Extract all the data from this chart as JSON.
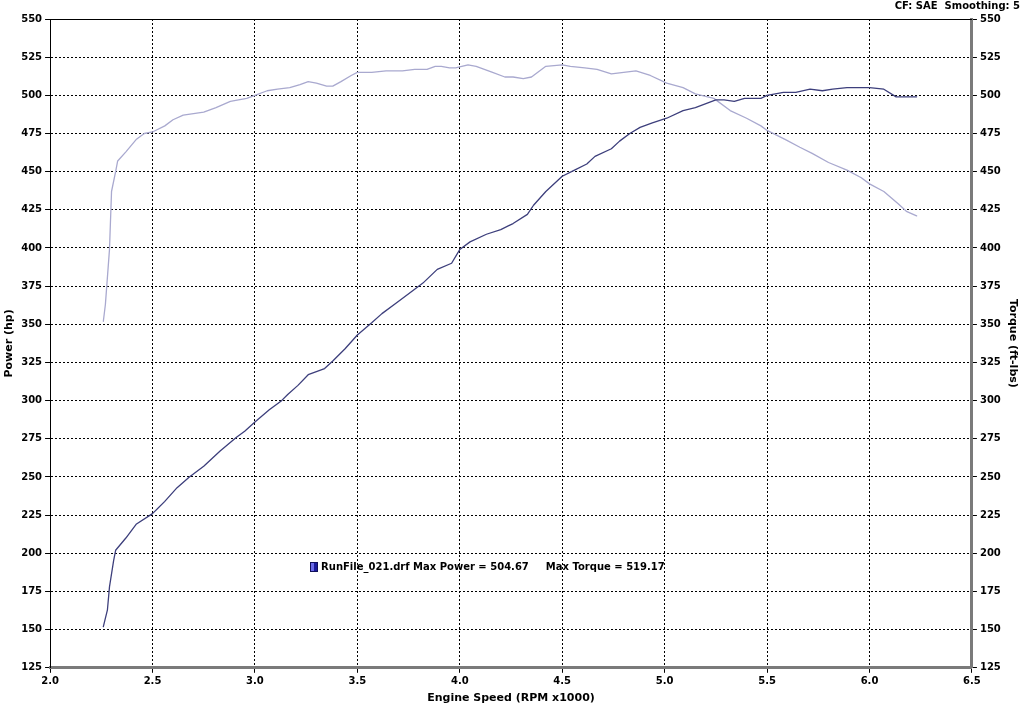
{
  "chart_data": {
    "type": "line",
    "xlabel": "Engine Speed (RPM x1000)",
    "ylabel": "Power (hp)",
    "y2label": "Torque (ft-lbs)",
    "annotations": [
      "CF: SAE  Smoothing: 5",
      "RunFile_021.drf Max Power = 504.67",
      "Max Torque = 519.17"
    ],
    "xlim": [
      2.0,
      6.5
    ],
    "xticks": [
      {
        "value": 2,
        "label": "2.0"
      },
      2.5,
      {
        "value": 3,
        "label": "3.0"
      },
      3.5,
      {
        "value": 4,
        "label": "4.0"
      },
      4.5,
      {
        "value": 5,
        "label": "5.0"
      },
      5.5,
      {
        "value": 6,
        "label": "6.0"
      },
      6.5
    ],
    "ylim": [
      125,
      550
    ],
    "yticks": [
      125,
      150,
      175,
      200,
      225,
      250,
      275,
      300,
      325,
      350,
      375,
      400,
      425,
      450,
      475,
      500,
      525,
      550
    ],
    "y2lim": [
      125,
      550
    ],
    "y2ticks": [
      125,
      150,
      175,
      200,
      225,
      250,
      275,
      300,
      325,
      350,
      375,
      400,
      425,
      450,
      475,
      500,
      525,
      550
    ],
    "grid": true,
    "marker": "none",
    "line_style": "solid",
    "series": [
      {
        "color": "#3d3f7c",
        "x": [
          2.26,
          2.28,
          2.29,
          2.31,
          2.32,
          2.37,
          2.42,
          2.5,
          2.56,
          2.62,
          2.68,
          2.75,
          2.83,
          2.91,
          2.95,
          3.0,
          3.07,
          3.13,
          3.16,
          3.21,
          3.26,
          3.34,
          3.38,
          3.44,
          3.5,
          3.57,
          3.62,
          3.69,
          3.77,
          3.82,
          3.89,
          3.96,
          4.0,
          4.05,
          4.13,
          4.2,
          4.26,
          4.33,
          4.36,
          4.42,
          4.5,
          4.56,
          4.62,
          4.66,
          4.74,
          4.78,
          4.83,
          4.88,
          4.94,
          5.01,
          5.09,
          5.15,
          5.25,
          5.29,
          5.34,
          5.39,
          5.47,
          5.5,
          5.58,
          5.64,
          5.71,
          5.77,
          5.82,
          5.89,
          5.94,
          6.0,
          6.07,
          6.13,
          6.18,
          6.23
        ],
        "values": [
          152,
          163,
          178,
          195,
          202,
          210,
          219,
          226,
          234,
          243,
          250,
          257,
          267,
          276,
          280,
          286,
          294,
          300,
          304,
          310,
          317,
          321,
          326,
          334,
          343,
          351,
          357,
          364,
          372,
          377,
          386,
          390,
          399,
          404,
          409,
          412,
          416,
          422,
          428,
          437,
          447,
          451,
          455,
          460,
          465,
          470,
          475,
          479,
          482,
          485,
          490,
          492,
          497,
          497,
          496,
          498,
          498,
          500,
          502,
          502,
          504,
          503,
          504,
          505,
          505,
          505,
          504,
          499,
          499,
          499
        ]
      },
      {
        "color": "#a9a9cf",
        "axis": "y2",
        "x": [
          2.26,
          2.27,
          2.29,
          2.3,
          2.32,
          2.33,
          2.37,
          2.42,
          2.46,
          2.5,
          2.56,
          2.6,
          2.65,
          2.7,
          2.75,
          2.81,
          2.88,
          2.92,
          2.96,
          3.0,
          3.06,
          3.11,
          3.17,
          3.22,
          3.26,
          3.3,
          3.35,
          3.38,
          3.42,
          3.47,
          3.5,
          3.57,
          3.64,
          3.72,
          3.78,
          3.84,
          3.88,
          3.91,
          3.95,
          3.98,
          4.04,
          4.08,
          4.16,
          4.22,
          4.26,
          4.31,
          4.35,
          4.42,
          4.5,
          4.54,
          4.61,
          4.67,
          4.74,
          4.8,
          4.86,
          4.93,
          5.01,
          5.09,
          5.15,
          5.24,
          5.32,
          5.4,
          5.47,
          5.5,
          5.59,
          5.66,
          5.72,
          5.8,
          5.89,
          5.96,
          6.0,
          6.07,
          6.14,
          6.18,
          6.23
        ],
        "values": [
          352,
          363,
          399,
          437,
          450,
          457,
          463,
          471,
          475,
          476,
          480,
          484,
          487,
          488,
          489,
          492,
          496,
          497,
          498,
          500,
          503,
          504,
          505,
          507,
          509,
          508,
          506,
          506,
          509,
          513,
          515,
          515,
          516,
          516,
          517,
          517,
          519,
          519,
          518,
          518,
          520,
          519,
          515,
          512,
          512,
          511,
          512,
          519,
          520,
          519,
          518,
          517,
          514,
          515,
          516,
          513,
          508,
          505,
          501,
          498,
          490,
          485,
          480,
          477,
          471,
          466,
          462,
          456,
          451,
          446,
          442,
          437,
          429,
          424,
          421
        ]
      }
    ]
  }
}
